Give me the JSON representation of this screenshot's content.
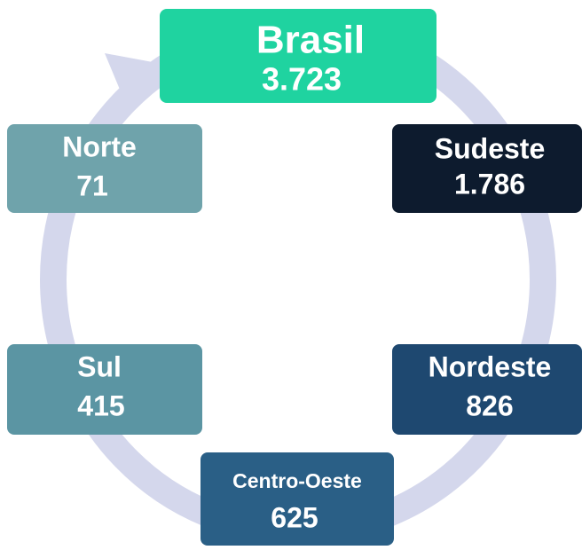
{
  "nodes": [
    {
      "label": "Brasil",
      "value": "3.723"
    },
    {
      "label": "Sudeste",
      "value": "1.786"
    },
    {
      "label": "Nordeste",
      "value": "826"
    },
    {
      "label": "Centro-Oeste",
      "value": "625"
    },
    {
      "label": "Sul",
      "value": "415"
    },
    {
      "label": "Norte",
      "value": "71"
    }
  ]
}
